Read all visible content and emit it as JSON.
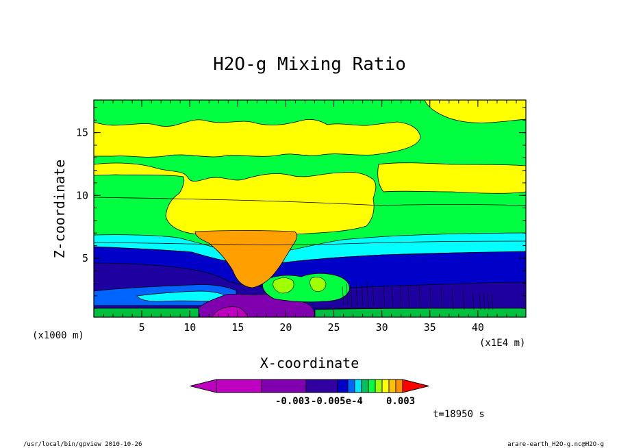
{
  "chart_data": {
    "type": "heatmap",
    "title": "H2O-g Mixing Ratio",
    "xlabel": "X-coordinate",
    "ylabel": "Z-coordinate",
    "x_unit_label": "(x1000 m)",
    "x_scale_label": "(x1E4 m)",
    "xlim": [
      0,
      45
    ],
    "ylim": [
      0.3,
      17.6
    ],
    "x_ticks": [
      "5",
      "10",
      "15",
      "20",
      "25",
      "30",
      "35",
      "40"
    ],
    "y_ticks": [
      "5",
      "10",
      "15"
    ],
    "colorbar": {
      "colors": [
        "#c000c0",
        "#8000b0",
        "#3000a0",
        "#0000c8",
        "#0064ff",
        "#00e6ff",
        "#00c060",
        "#00ff40",
        "#a0ff00",
        "#ffff00",
        "#ffc000",
        "#ff9000",
        "#ff0000"
      ],
      "labels": [
        "-0.003",
        "-0.005e-4",
        "0.003"
      ]
    },
    "time_label": "t=18950 s",
    "colors": {
      "magenta": "#c000c0",
      "purple": "#8000b0",
      "deep_blue": "#1e00a0",
      "blue": "#0000c8",
      "light_blue": "#0064ff",
      "cyan": "#00ffff",
      "dark_green": "#00c040",
      "green": "#00ff40",
      "yellow": "#ffff00",
      "orange": "#ff9f00"
    }
  },
  "footer": {
    "left": "/usr/local/bin/gpview  2010-10-26",
    "right": "arare-earth_H2O-g.nc@H2O-g"
  }
}
